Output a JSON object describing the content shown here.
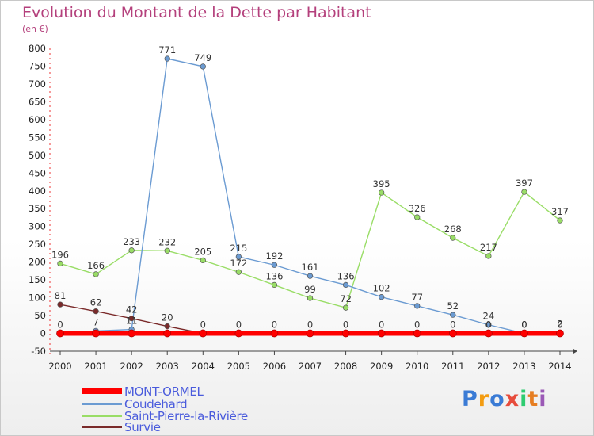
{
  "header": {
    "title": "Evolution du Montant de la Dette par Habitant",
    "subtitle": "(en €)"
  },
  "logo": {
    "text": "Proxiti",
    "colors": [
      "#3a7bd5",
      "#f39c12",
      "#3a7bd5",
      "#e74c3c",
      "#2ecc71",
      "#e67e22",
      "#9b59b6"
    ]
  },
  "chart_data": {
    "type": "line",
    "title": "Evolution du Montant de la Dette par Habitant",
    "ylabel": "(en €)",
    "xlabel": "",
    "ylim": [
      -50,
      800
    ],
    "yticks": [
      -50,
      0,
      50,
      100,
      150,
      200,
      250,
      300,
      350,
      400,
      450,
      500,
      550,
      600,
      650,
      700,
      750,
      800
    ],
    "grid": false,
    "legend_position": "bottom-left",
    "categories": [
      "2000",
      "2001",
      "2002",
      "2003",
      "2004",
      "2005",
      "2006",
      "2007",
      "2008",
      "2009",
      "2010",
      "2011",
      "2012",
      "2013",
      "2014"
    ],
    "series": [
      {
        "name": "MONT-ORMEL",
        "color": "#ff0000",
        "values": [
          0,
          0,
          0,
          0,
          0,
          0,
          0,
          0,
          0,
          0,
          0,
          0,
          0,
          0,
          0
        ],
        "labels": []
      },
      {
        "name": "Coudehard",
        "color": "#6b9bd2",
        "values": [
          0,
          7,
          11,
          771,
          749,
          215,
          192,
          161,
          136,
          102,
          77,
          52,
          24,
          0,
          2
        ],
        "labels": [
          "0",
          "7",
          "11",
          "771",
          "749",
          "215",
          "192",
          "161",
          "136",
          "102",
          "77",
          "52",
          "24",
          "0",
          "2"
        ]
      },
      {
        "name": "Saint-Pierre-la-Rivière",
        "color": "#99dd66",
        "values": [
          196,
          166,
          233,
          232,
          205,
          172,
          136,
          99,
          72,
          395,
          326,
          268,
          217,
          397,
          317
        ],
        "labels": [
          "196",
          "166",
          "233",
          "232",
          "205",
          "172",
          "136",
          "99",
          "72",
          "395",
          "326",
          "268",
          "217",
          "397",
          "317"
        ]
      },
      {
        "name": "Survie",
        "color": "#7a2a2a",
        "values": [
          81,
          62,
          42,
          20,
          0,
          0,
          0,
          0,
          0,
          0,
          0,
          0,
          0,
          0,
          0
        ],
        "labels": [
          "81",
          "62",
          "42",
          "20",
          "0",
          "0",
          "0",
          "0",
          "0",
          "0",
          "0",
          "0",
          "0",
          "0",
          "0"
        ]
      }
    ]
  }
}
